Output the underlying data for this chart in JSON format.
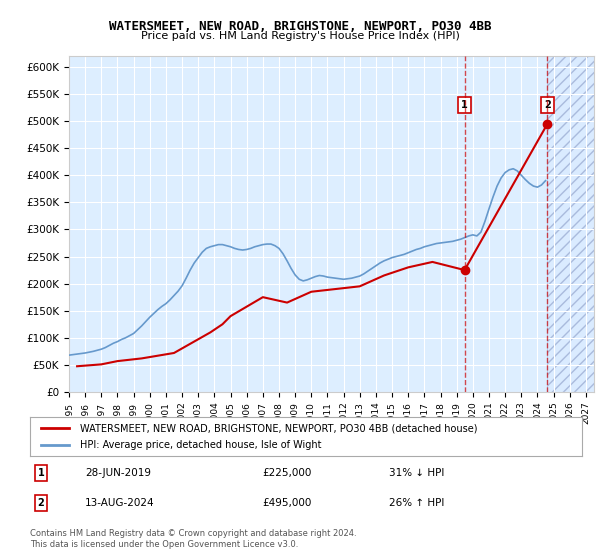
{
  "title": "WATERSMEET, NEW ROAD, BRIGHSTONE, NEWPORT, PO30 4BB",
  "subtitle": "Price paid vs. HM Land Registry's House Price Index (HPI)",
  "ylabel": "",
  "ylim": [
    0,
    620000
  ],
  "yticks": [
    0,
    50000,
    100000,
    150000,
    200000,
    250000,
    300000,
    350000,
    400000,
    450000,
    500000,
    550000,
    600000
  ],
  "xlim_start": 1995.0,
  "xlim_end": 2027.5,
  "background_plot": "#ddeeff",
  "background_hatch": "#cce0ff",
  "grid_color": "#ffffff",
  "hpi_color": "#6699cc",
  "price_color": "#cc0000",
  "marker1_date": 2019.49,
  "marker1_price": 225000,
  "marker1_label": "28-JUN-2019",
  "marker1_amount": "£225,000",
  "marker1_hpi": "31% ↓ HPI",
  "marker2_date": 2024.62,
  "marker2_price": 495000,
  "marker2_label": "13-AUG-2024",
  "marker2_amount": "£495,000",
  "marker2_hpi": "26% ↑ HPI",
  "legend_line1": "WATERSMEET, NEW ROAD, BRIGHSTONE, NEWPORT, PO30 4BB (detached house)",
  "legend_line2": "HPI: Average price, detached house, Isle of Wight",
  "footnote": "Contains HM Land Registry data © Crown copyright and database right 2024.\nThis data is licensed under the Open Government Licence v3.0.",
  "hpi_data_x": [
    1995.0,
    1995.25,
    1995.5,
    1995.75,
    1996.0,
    1996.25,
    1996.5,
    1996.75,
    1997.0,
    1997.25,
    1997.5,
    1997.75,
    1998.0,
    1998.25,
    1998.5,
    1998.75,
    1999.0,
    1999.25,
    1999.5,
    1999.75,
    2000.0,
    2000.25,
    2000.5,
    2000.75,
    2001.0,
    2001.25,
    2001.5,
    2001.75,
    2002.0,
    2002.25,
    2002.5,
    2002.75,
    2003.0,
    2003.25,
    2003.5,
    2003.75,
    2004.0,
    2004.25,
    2004.5,
    2004.75,
    2005.0,
    2005.25,
    2005.5,
    2005.75,
    2006.0,
    2006.25,
    2006.5,
    2006.75,
    2007.0,
    2007.25,
    2007.5,
    2007.75,
    2008.0,
    2008.25,
    2008.5,
    2008.75,
    2009.0,
    2009.25,
    2009.5,
    2009.75,
    2010.0,
    2010.25,
    2010.5,
    2010.75,
    2011.0,
    2011.25,
    2011.5,
    2011.75,
    2012.0,
    2012.25,
    2012.5,
    2012.75,
    2013.0,
    2013.25,
    2013.5,
    2013.75,
    2014.0,
    2014.25,
    2014.5,
    2014.75,
    2015.0,
    2015.25,
    2015.5,
    2015.75,
    2016.0,
    2016.25,
    2016.5,
    2016.75,
    2017.0,
    2017.25,
    2017.5,
    2017.75,
    2018.0,
    2018.25,
    2018.5,
    2018.75,
    2019.0,
    2019.25,
    2019.5,
    2019.75,
    2020.0,
    2020.25,
    2020.5,
    2020.75,
    2021.0,
    2021.25,
    2021.5,
    2021.75,
    2022.0,
    2022.25,
    2022.5,
    2022.75,
    2023.0,
    2023.25,
    2023.5,
    2023.75,
    2024.0,
    2024.25,
    2024.5
  ],
  "hpi_data_y": [
    68000,
    69000,
    70000,
    71000,
    72000,
    73500,
    75000,
    77000,
    79000,
    82000,
    86000,
    90000,
    93000,
    97000,
    100000,
    104000,
    108000,
    115000,
    122000,
    130000,
    138000,
    145000,
    152000,
    158000,
    163000,
    170000,
    178000,
    186000,
    196000,
    210000,
    225000,
    238000,
    248000,
    258000,
    265000,
    268000,
    270000,
    272000,
    272000,
    270000,
    268000,
    265000,
    263000,
    262000,
    263000,
    265000,
    268000,
    270000,
    272000,
    273000,
    273000,
    270000,
    265000,
    255000,
    242000,
    228000,
    216000,
    208000,
    205000,
    207000,
    210000,
    213000,
    215000,
    214000,
    212000,
    211000,
    210000,
    209000,
    208000,
    209000,
    210000,
    212000,
    214000,
    218000,
    223000,
    228000,
    233000,
    238000,
    242000,
    245000,
    248000,
    250000,
    252000,
    254000,
    257000,
    260000,
    263000,
    265000,
    268000,
    270000,
    272000,
    274000,
    275000,
    276000,
    277000,
    278000,
    280000,
    282000,
    285000,
    288000,
    290000,
    288000,
    295000,
    315000,
    338000,
    360000,
    380000,
    395000,
    405000,
    410000,
    412000,
    408000,
    400000,
    392000,
    385000,
    380000,
    378000,
    382000,
    390000
  ],
  "price_data_x": [
    1995.5,
    1997.0,
    1998.0,
    1999.5,
    2001.5,
    2003.75,
    2004.5,
    2005.0,
    2007.0,
    2008.5,
    2010.0,
    2013.0,
    2014.5,
    2016.0,
    2017.5,
    2019.49,
    2024.62
  ],
  "price_data_y": [
    47500,
    51000,
    57000,
    62000,
    72000,
    110000,
    125000,
    140000,
    175000,
    165000,
    185000,
    195000,
    215000,
    230000,
    240000,
    225000,
    495000
  ]
}
